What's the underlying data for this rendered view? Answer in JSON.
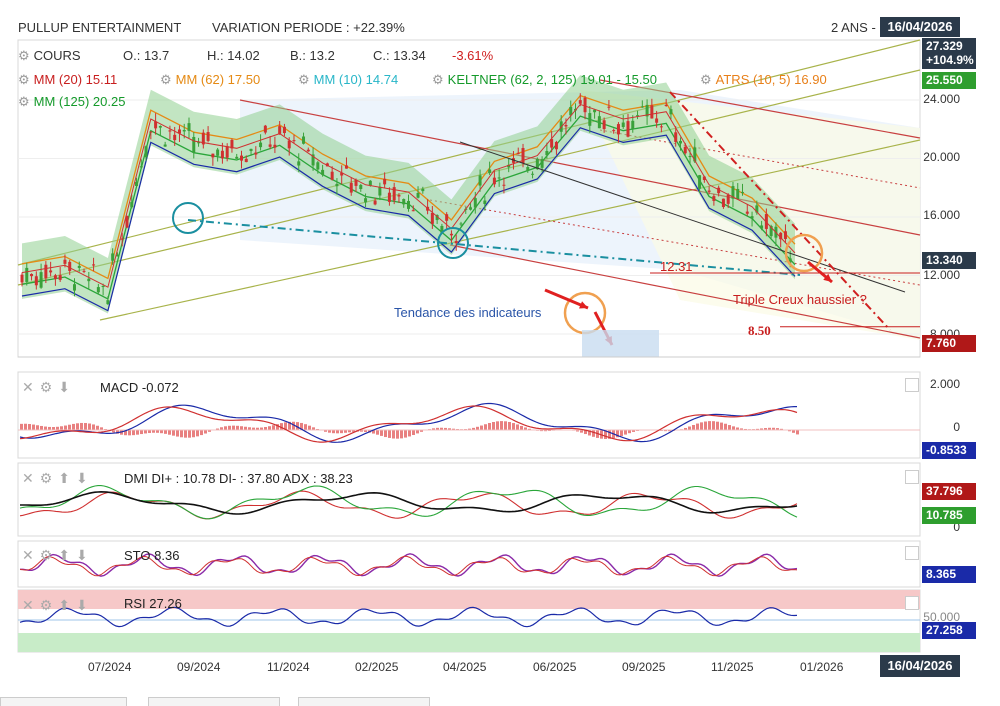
{
  "header": {
    "title": "PULLUP ENTERTAINMENT",
    "variation": "VARIATION PERIODE : +22.39%",
    "period": "2 ANS -",
    "date": "16/04/2026"
  },
  "legend": {
    "cours": "COURS",
    "open": "O.: 13.7",
    "high": "H.: 14.02",
    "low": "B.: 13.2",
    "close": "C.: 13.34",
    "change": "-3.61%",
    "mm20": "MM (20)  15.11",
    "mm62": "MM (62)  17.50",
    "mm10": "MM (10)  14.74",
    "keltner": "KELTNER (62, 2, 125)  19.01 - 15.50",
    "atrs": "ATRS (10, 5)  16.90",
    "mm125": "MM (125)  20.25"
  },
  "annotations": {
    "tendance": "Tendance des indicateurs",
    "triple": "Triple Creux haussier ?",
    "level1": "12.31",
    "level2": "8.50"
  },
  "price_axis": {
    "ticks": [
      "24.000",
      "20.000",
      "16.000",
      "12.000",
      "8.000"
    ],
    "badges": {
      "top": "27.329",
      "pct": "+104.9%",
      "green": "25.550",
      "last": "13.340",
      "red": "7.760"
    }
  },
  "macd": {
    "title": "MACD",
    "value": "-0.072",
    "ticks": [
      "2.000",
      "0"
    ],
    "badge": "-0.8533"
  },
  "dmi": {
    "title": "DMI",
    "value": "DI+ : 10.78  DI- : 37.80  ADX : 38.23",
    "tick": "0",
    "badge_red": "37.796",
    "badge_green": "10.785"
  },
  "sto": {
    "title": "STO",
    "value": "8.36",
    "badge": "8.365"
  },
  "rsi": {
    "title": "RSI",
    "value": "27.26",
    "tick": "50.000",
    "badge": "27.258"
  },
  "x_axis": [
    "07/2024",
    "09/2024",
    "11/2024",
    "02/2025",
    "04/2025",
    "06/2025",
    "09/2025",
    "11/2025",
    "01/2026"
  ],
  "x_axis_end": "16/04/2026",
  "colors": {
    "candle_up": "#3aa13a",
    "candle_down": "#d03030",
    "badge_blue": "#1a2aa8",
    "badge_green": "#2e9e2e",
    "badge_red": "#b01818",
    "badge_dark": "#2b3a4a",
    "keltner_fill": "#8fcf8f",
    "rsi_overbought": "#f6c8c8",
    "rsi_oversold": "#c8ecc8"
  },
  "chart_data": {
    "type": "candlestick",
    "title": "PULLUP ENTERTAINMENT",
    "x_labels": [
      "07/2024",
      "09/2024",
      "11/2024",
      "02/2025",
      "04/2025",
      "06/2025",
      "09/2025",
      "11/2025",
      "01/2026"
    ],
    "ylim": [
      7.0,
      27.3
    ],
    "close_series": [
      {
        "x": "06/2024",
        "y": 12.0
      },
      {
        "x": "07/2024",
        "y": 12.5
      },
      {
        "x": "08/2024",
        "y": 11.0
      },
      {
        "x": "09/2024",
        "y": 22.5
      },
      {
        "x": "10/2024",
        "y": 21.0
      },
      {
        "x": "11/2024",
        "y": 20.5
      },
      {
        "x": "12/2024",
        "y": 21.5
      },
      {
        "x": "01/2025",
        "y": 19.5
      },
      {
        "x": "02/2025",
        "y": 18.0
      },
      {
        "x": "03/2025",
        "y": 17.5
      },
      {
        "x": "04/2025",
        "y": 15.0
      },
      {
        "x": "05/2025",
        "y": 19.0
      },
      {
        "x": "06/2025",
        "y": 20.0
      },
      {
        "x": "07/2025",
        "y": 23.5
      },
      {
        "x": "08/2025",
        "y": 22.5
      },
      {
        "x": "09/2025",
        "y": 23.0
      },
      {
        "x": "10/2025",
        "y": 18.0
      },
      {
        "x": "11/2025",
        "y": 16.5
      },
      {
        "x": "12/2025",
        "y": 13.34
      }
    ],
    "levels": [
      12.31,
      8.5
    ]
  }
}
